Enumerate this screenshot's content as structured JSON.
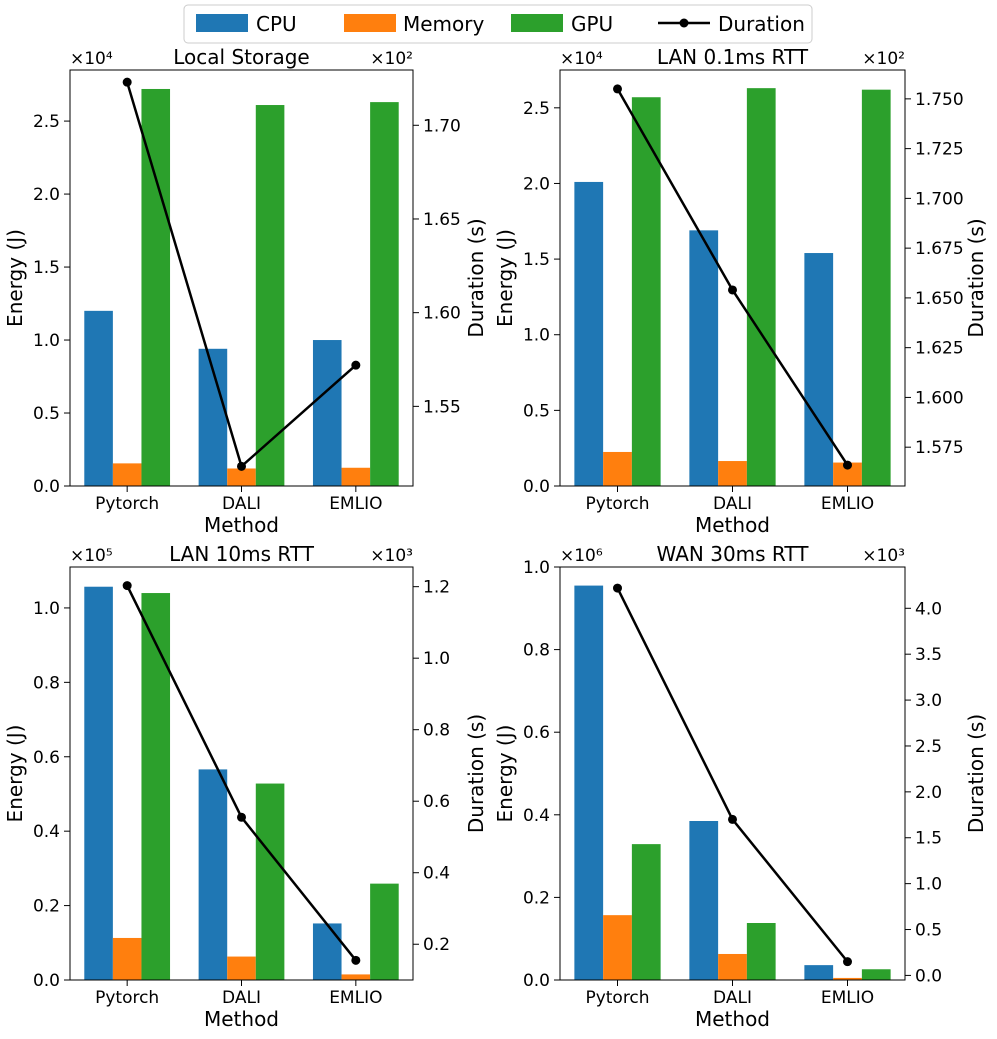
{
  "legend": {
    "items": [
      {
        "label": "CPU",
        "kind": "bar",
        "color": "#1f77b4"
      },
      {
        "label": "Memory",
        "kind": "bar",
        "color": "#ff7f0e"
      },
      {
        "label": "GPU",
        "kind": "bar",
        "color": "#2ca02c"
      },
      {
        "label": "Duration",
        "kind": "line",
        "color": "#000000"
      }
    ]
  },
  "chart_data": [
    {
      "type": "bar",
      "title": "Local Storage",
      "categories": [
        "Pytorch",
        "DALI",
        "EMLIO"
      ],
      "xlabel": "Method",
      "ylabel": "Energy (J)",
      "y2label": "Duration (s)",
      "left_multiplier": "×10⁴",
      "right_multiplier": "×10²",
      "ylim": [
        0,
        2.85
      ],
      "yticks": [
        0.0,
        0.5,
        1.0,
        1.5,
        2.0,
        2.5
      ],
      "ytick_labels": [
        "0.0",
        "0.5",
        "1.0",
        "1.5",
        "2.0",
        "2.5"
      ],
      "y2lim": [
        1.5075,
        1.7295
      ],
      "y2ticks": [
        1.55,
        1.6,
        1.65,
        1.7
      ],
      "y2tick_labels": [
        "1.55",
        "1.60",
        "1.65",
        "1.70"
      ],
      "series": [
        {
          "name": "CPU",
          "values": [
            1.2,
            0.94,
            1.0
          ]
        },
        {
          "name": "Memory",
          "values": [
            0.155,
            0.12,
            0.125
          ]
        },
        {
          "name": "GPU",
          "values": [
            2.72,
            2.61,
            2.63
          ]
        }
      ],
      "duration": [
        1.723,
        1.518,
        1.572
      ]
    },
    {
      "type": "bar",
      "title": "LAN 0.1ms RTT",
      "categories": [
        "Pytorch",
        "DALI",
        "EMLIO"
      ],
      "xlabel": "Method",
      "ylabel": "Energy (J)",
      "y2label": "Duration (s)",
      "left_multiplier": "×10⁴",
      "right_multiplier": "×10²",
      "ylim": [
        0,
        2.75
      ],
      "yticks": [
        0.0,
        0.5,
        1.0,
        1.5,
        2.0,
        2.5
      ],
      "ytick_labels": [
        "0.0",
        "0.5",
        "1.0",
        "1.5",
        "2.0",
        "2.5"
      ],
      "y2lim": [
        1.5555,
        1.7645
      ],
      "y2ticks": [
        1.575,
        1.6,
        1.625,
        1.65,
        1.675,
        1.7,
        1.725,
        1.75
      ],
      "y2tick_labels": [
        "1.575",
        "1.600",
        "1.625",
        "1.650",
        "1.675",
        "1.700",
        "1.725",
        "1.750"
      ],
      "series": [
        {
          "name": "CPU",
          "values": [
            2.01,
            1.69,
            1.54
          ]
        },
        {
          "name": "Memory",
          "values": [
            0.225,
            0.165,
            0.155
          ]
        },
        {
          "name": "GPU",
          "values": [
            2.57,
            2.63,
            2.62
          ]
        }
      ],
      "duration": [
        1.755,
        1.654,
        1.566
      ]
    },
    {
      "type": "bar",
      "title": "LAN 10ms RTT",
      "categories": [
        "Pytorch",
        "DALI",
        "EMLIO"
      ],
      "xlabel": "Method",
      "ylabel": "Energy (J)",
      "y2label": "Duration (s)",
      "left_multiplier": "×10⁵",
      "right_multiplier": "×10³",
      "ylim": [
        0,
        1.11
      ],
      "yticks": [
        0.0,
        0.2,
        0.4,
        0.6,
        0.8,
        1.0
      ],
      "ytick_labels": [
        "0.0",
        "0.2",
        "0.4",
        "0.6",
        "0.8",
        "1.0"
      ],
      "y2lim": [
        0.1,
        1.255
      ],
      "y2ticks": [
        0.2,
        0.4,
        0.6,
        0.8,
        1.0,
        1.2
      ],
      "y2tick_labels": [
        "0.2",
        "0.4",
        "0.6",
        "0.8",
        "1.0",
        "1.2"
      ],
      "series": [
        {
          "name": "CPU",
          "values": [
            1.057,
            0.566,
            0.152
          ]
        },
        {
          "name": "Memory",
          "values": [
            0.113,
            0.063,
            0.015
          ]
        },
        {
          "name": "GPU",
          "values": [
            1.04,
            0.528,
            0.259
          ]
        }
      ],
      "duration": [
        1.203,
        0.555,
        0.155
      ]
    },
    {
      "type": "bar",
      "title": "WAN 30ms RTT",
      "categories": [
        "Pytorch",
        "DALI",
        "EMLIO"
      ],
      "xlabel": "Method",
      "ylabel": "Energy (J)",
      "y2label": "Duration (s)",
      "left_multiplier": "×10⁶",
      "right_multiplier": "×10³",
      "ylim": [
        0,
        1.0
      ],
      "yticks": [
        0.0,
        0.2,
        0.4,
        0.6,
        0.8,
        1.0
      ],
      "ytick_labels": [
        "0.0",
        "0.2",
        "0.4",
        "0.6",
        "0.8",
        "1.0"
      ],
      "y2lim": [
        -0.05,
        4.45
      ],
      "y2ticks": [
        0.0,
        0.5,
        1.0,
        1.5,
        2.0,
        2.5,
        3.0,
        3.5,
        4.0
      ],
      "y2tick_labels": [
        "0.0",
        "0.5",
        "1.0",
        "1.5",
        "2.0",
        "2.5",
        "3.0",
        "3.5",
        "4.0"
      ],
      "series": [
        {
          "name": "CPU",
          "values": [
            0.955,
            0.385,
            0.036
          ]
        },
        {
          "name": "Memory",
          "values": [
            0.157,
            0.063,
            0.005
          ]
        },
        {
          "name": "GPU",
          "values": [
            0.329,
            0.138,
            0.026
          ]
        }
      ],
      "duration": [
        4.22,
        1.7,
        0.15
      ]
    }
  ]
}
